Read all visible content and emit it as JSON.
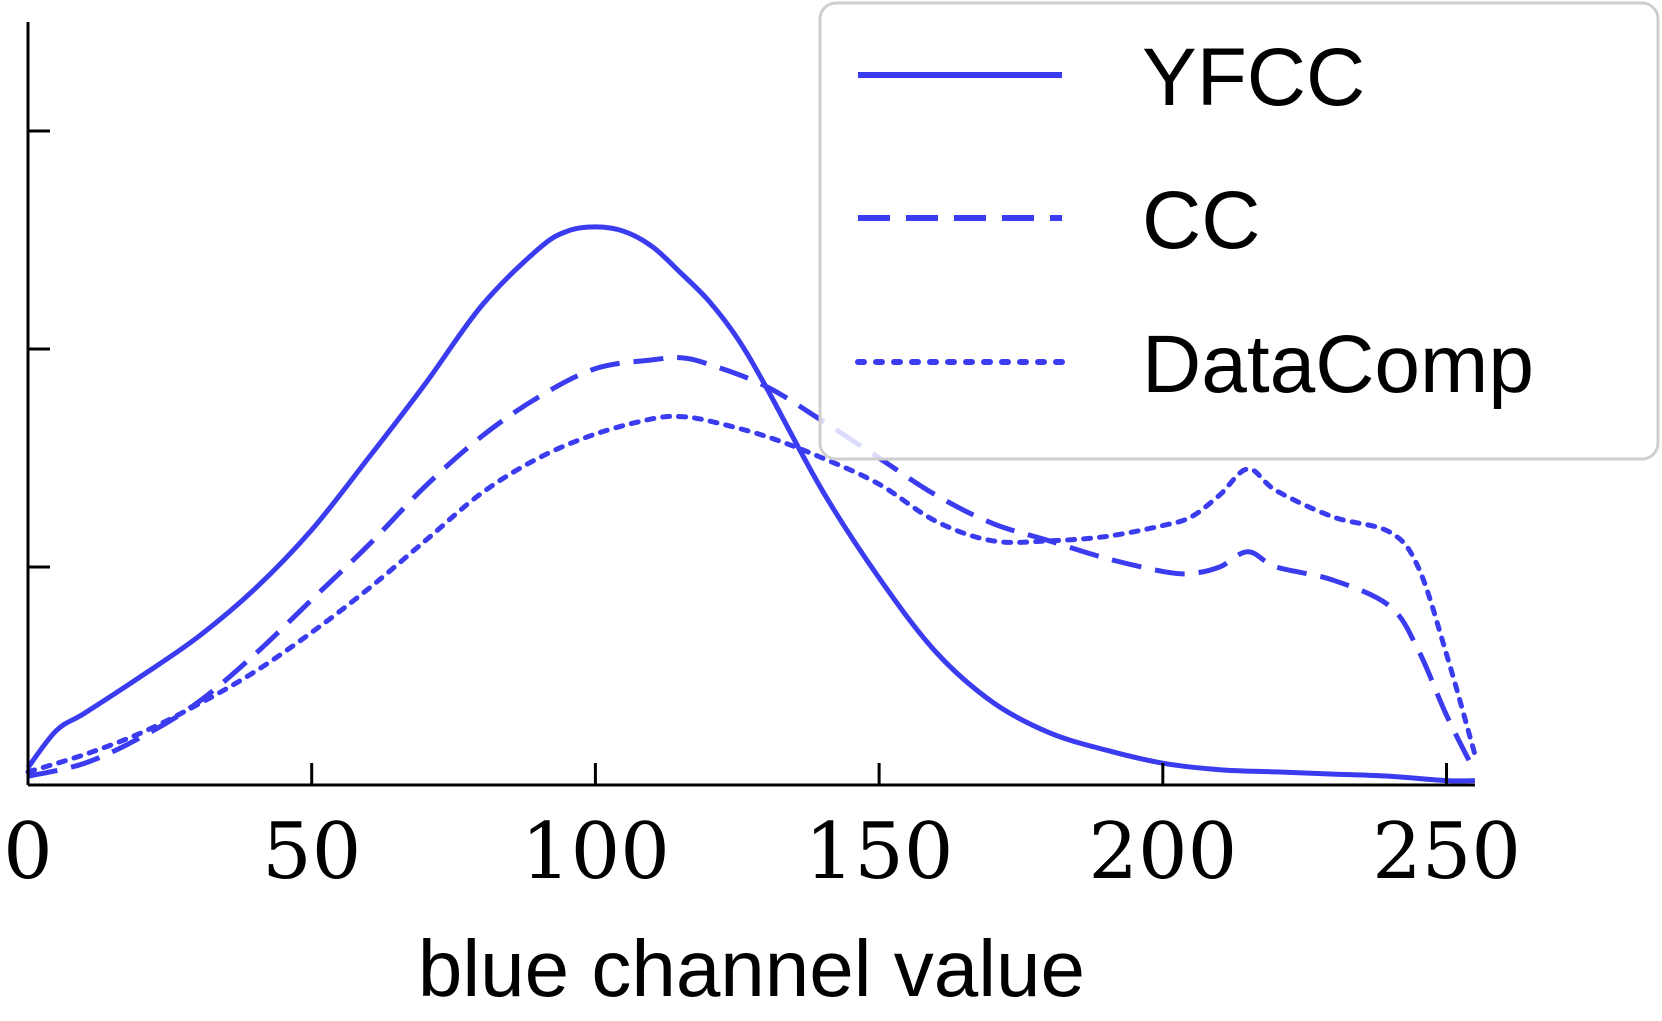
{
  "chart_data": {
    "type": "line",
    "title": "",
    "xlabel": "blue channel value",
    "ylabel": "",
    "xlim": [
      0,
      255
    ],
    "ylim": [
      0,
      3.5
    ],
    "x_ticks": [
      0,
      50,
      100,
      150,
      200,
      250
    ],
    "y_ticks": [
      1,
      2,
      3
    ],
    "grid": false,
    "legend_position": "top-right",
    "color": "#3b3bf0",
    "series": [
      {
        "name": "YFCC",
        "style": "solid",
        "x": [
          0,
          5,
          10,
          20,
          30,
          40,
          50,
          60,
          70,
          80,
          90,
          95,
          100,
          105,
          110,
          115,
          120,
          125,
          130,
          140,
          150,
          160,
          170,
          180,
          190,
          200,
          210,
          220,
          230,
          240,
          250,
          255
        ],
        "y": [
          0.08,
          0.25,
          0.33,
          0.5,
          0.68,
          0.9,
          1.17,
          1.5,
          1.84,
          2.2,
          2.46,
          2.54,
          2.56,
          2.54,
          2.47,
          2.35,
          2.22,
          2.05,
          1.83,
          1.35,
          0.95,
          0.61,
          0.38,
          0.24,
          0.16,
          0.1,
          0.07,
          0.06,
          0.05,
          0.04,
          0.02,
          0.02
        ]
      },
      {
        "name": "CC",
        "style": "dashed",
        "x": [
          0,
          10,
          20,
          30,
          40,
          50,
          60,
          70,
          80,
          90,
          100,
          110,
          115,
          120,
          130,
          140,
          150,
          160,
          170,
          180,
          190,
          200,
          205,
          210,
          215,
          220,
          230,
          240,
          245,
          250,
          255
        ],
        "y": [
          0.04,
          0.1,
          0.22,
          0.38,
          0.6,
          0.85,
          1.1,
          1.37,
          1.6,
          1.78,
          1.91,
          1.95,
          1.96,
          1.93,
          1.83,
          1.67,
          1.5,
          1.33,
          1.2,
          1.12,
          1.04,
          0.98,
          0.97,
          1.0,
          1.07,
          1.0,
          0.94,
          0.82,
          0.62,
          0.32,
          0.06
        ]
      },
      {
        "name": "DataComp",
        "style": "dotted",
        "x": [
          0,
          10,
          20,
          30,
          40,
          50,
          60,
          70,
          80,
          90,
          100,
          110,
          115,
          120,
          130,
          140,
          150,
          160,
          170,
          180,
          190,
          200,
          205,
          210,
          215,
          220,
          230,
          240,
          245,
          250,
          255
        ],
        "y": [
          0.06,
          0.14,
          0.24,
          0.37,
          0.52,
          0.7,
          0.9,
          1.12,
          1.34,
          1.5,
          1.61,
          1.68,
          1.69,
          1.67,
          1.6,
          1.5,
          1.38,
          1.21,
          1.12,
          1.12,
          1.14,
          1.19,
          1.23,
          1.33,
          1.45,
          1.35,
          1.23,
          1.16,
          1.0,
          0.6,
          0.14
        ]
      }
    ]
  }
}
